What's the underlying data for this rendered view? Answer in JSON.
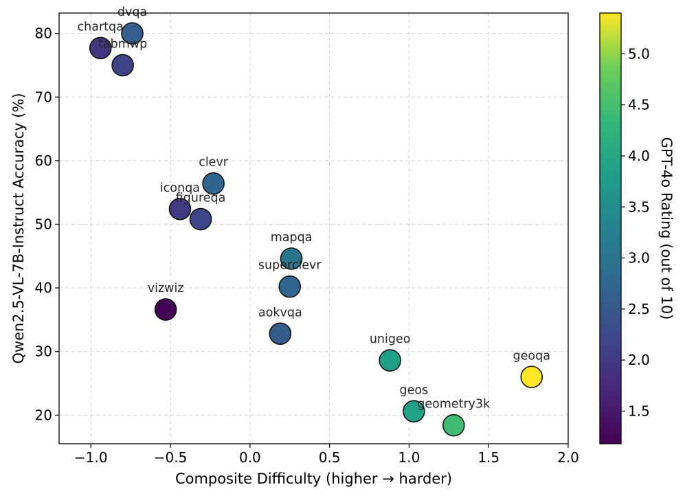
{
  "chart_data": {
    "type": "scatter",
    "xlabel": "Composite Difficulty (higher → harder)",
    "ylabel": "Qwen2.5-VL-7B-Instruct Accuracy (%)",
    "xlim": [
      -1.2,
      2.0
    ],
    "ylim": [
      15.5,
      83.2
    ],
    "xticks": [
      -1.0,
      -0.5,
      0.0,
      0.5,
      1.0,
      1.5,
      2.0
    ],
    "xtick_labels": [
      "−1.0",
      "−0.5",
      "0.0",
      "0.5",
      "1.0",
      "1.5",
      "2.0"
    ],
    "yticks": [
      20,
      30,
      40,
      50,
      60,
      70,
      80
    ],
    "ytick_labels": [
      "20",
      "30",
      "40",
      "50",
      "60",
      "70",
      "80"
    ],
    "grid": true,
    "colorbar": {
      "label": "GPT-4o Rating (out of 10)",
      "colormap": "viridis",
      "range": [
        1.18,
        5.4
      ],
      "ticks": [
        1.5,
        2.0,
        2.5,
        3.0,
        3.5,
        4.0,
        4.5,
        5.0
      ],
      "tick_labels": [
        "1.5",
        "2.0",
        "2.5",
        "3.0",
        "3.5",
        "4.0",
        "4.5",
        "5.0"
      ]
    },
    "points": [
      {
        "name": "dvqa",
        "x": -0.74,
        "y": 80.0,
        "rating": 2.6
      },
      {
        "name": "chartqa",
        "x": -0.94,
        "y": 77.7,
        "rating": 1.95
      },
      {
        "name": "tabmwp",
        "x": -0.8,
        "y": 75.0,
        "rating": 2.15
      },
      {
        "name": "clevr",
        "x": -0.23,
        "y": 56.4,
        "rating": 2.75
      },
      {
        "name": "iconqa",
        "x": -0.44,
        "y": 52.4,
        "rating": 2.0
      },
      {
        "name": "figureqa",
        "x": -0.31,
        "y": 50.8,
        "rating": 2.2
      },
      {
        "name": "mapqa",
        "x": 0.26,
        "y": 44.6,
        "rating": 3.05
      },
      {
        "name": "superclevr",
        "x": 0.25,
        "y": 40.2,
        "rating": 2.75
      },
      {
        "name": "vizwiz",
        "x": -0.53,
        "y": 36.6,
        "rating": 1.2
      },
      {
        "name": "aokvqa",
        "x": 0.19,
        "y": 32.8,
        "rating": 2.55
      },
      {
        "name": "unigeo",
        "x": 0.88,
        "y": 28.6,
        "rating": 3.85
      },
      {
        "name": "geoqa",
        "x": 1.77,
        "y": 26.0,
        "rating": 5.4
      },
      {
        "name": "geos",
        "x": 1.03,
        "y": 20.6,
        "rating": 3.9
      },
      {
        "name": "geometry3k",
        "x": 1.28,
        "y": 18.4,
        "rating": 4.45
      }
    ]
  }
}
